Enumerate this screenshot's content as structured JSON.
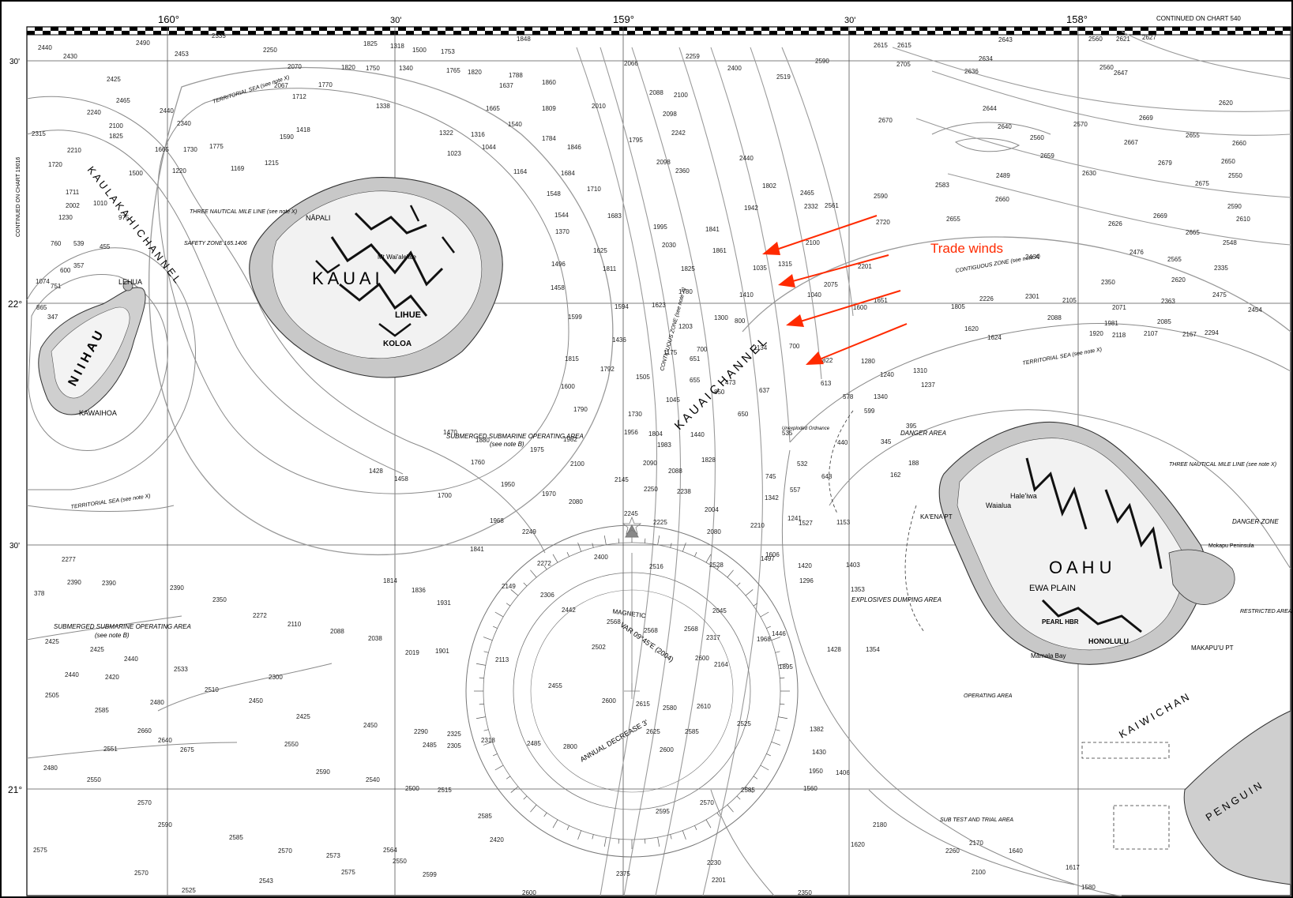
{
  "chart": {
    "top_longitude_labels": [
      "160°",
      "30'",
      "159°",
      "30'",
      "158°"
    ],
    "left_latitude_labels": [
      "30'",
      "22°",
      "30'",
      "21°"
    ],
    "continued_on_top": "CONTINUED ON CHART 540",
    "continued_on_left": "CONTINUED ON CHART 19016"
  },
  "islands": {
    "kauai": "K A U A I",
    "niihau": "N I I H A U",
    "oahu": "O A H U",
    "lehua": "LEHUA",
    "kawaihoa": "KAWAIHOA",
    "lihue": "LIHUE",
    "koloa": "KOLOA",
    "napali": "NĀPALI",
    "honolulu": "HONOLULU",
    "pearl_hbr": "PEARL HBR",
    "ewa_plain": "EWA PLAIN",
    "waialua": "Waialua",
    "haleiwa": "Hale'iwa",
    "kaena_pt": "KA'ENA PT",
    "makapuu_pt": "MAKAPU'U PT",
    "penguin_bank": "P E N G U I N",
    "mt_waialeale": "Mt Wai'ale'ale",
    "mamala_bay": "Māmala Bay",
    "mokapu_peninsula": "Mokapu Peninsula"
  },
  "channels": {
    "kaulakahi": "K A U L A K A H I   C H A N N E L",
    "kauai_channel": "K A U A I   C H A N N E L",
    "kaiwi": "K A I W I   C H A N"
  },
  "areas": {
    "submarine_area_1": "SUBMERGED SUBMARINE OPERATING AREA",
    "submarine_area_2": "SUBMERGED SUBMARINE OPERATING AREA",
    "see_note_b": "(see note B)",
    "territorial_sea": "TERRITORIAL SEA (see note X)",
    "three_mile": "THREE NAUTICAL MILE LINE (see note X)",
    "contiguous_zone": "CONTIGUOUS ZONE (see note X)",
    "safety_zone": "SAFETY ZONE 165.1406",
    "danger_area": "DANGER AREA",
    "danger_zone": "DANGER ZONE",
    "restricted_area": "RESTRICTED AREA",
    "explosives_dumping": "EXPLOSIVES DUMPING AREA",
    "operating_area": "OPERATING AREA",
    "unexploded_ordnance": "Unexploded Ordnance",
    "sub_test_trial": "SUB TEST AND TRIAL AREA"
  },
  "compass": {
    "magnetic": "MAGNETIC",
    "variation": "VAR 09°45'E (2004)",
    "annual_decrease": "ANNUAL DECREASE 3'"
  },
  "annotation": {
    "label": "Trade winds",
    "color": "#ff2a00"
  },
  "soundings": [
    [
      "2440",
      48,
      63
    ],
    [
      "2430",
      80,
      74
    ],
    [
      "2490",
      172,
      57
    ],
    [
      "2335",
      268,
      48
    ],
    [
      "2250",
      333,
      66
    ],
    [
      "1825",
      460,
      58
    ],
    [
      "1318",
      494,
      61
    ],
    [
      "1500",
      522,
      66
    ],
    [
      "1753",
      558,
      68
    ],
    [
      "1848",
      654,
      52
    ],
    [
      "2453",
      221,
      71
    ],
    [
      "2070",
      364,
      87
    ],
    [
      "1820",
      432,
      88
    ],
    [
      "1750",
      463,
      89
    ],
    [
      "1340",
      505,
      89
    ],
    [
      "1765",
      565,
      92
    ],
    [
      "1820",
      592,
      94
    ],
    [
      "1788",
      644,
      98
    ],
    [
      "2066",
      790,
      83
    ],
    [
      "2259",
      868,
      74
    ],
    [
      "2425",
      135,
      103
    ],
    [
      "2067",
      347,
      111
    ],
    [
      "1770",
      403,
      110
    ],
    [
      "1712",
      370,
      125
    ],
    [
      "1637",
      632,
      111
    ],
    [
      "1860",
      686,
      107
    ],
    [
      "2400",
      921,
      89
    ],
    [
      "2519",
      983,
      100
    ],
    [
      "2590",
      1032,
      80
    ],
    [
      "2615",
      1106,
      60
    ],
    [
      "2240",
      110,
      145
    ],
    [
      "2465",
      147,
      130
    ],
    [
      "2440",
      202,
      143
    ],
    [
      "1338",
      476,
      137
    ],
    [
      "1665",
      615,
      140
    ],
    [
      "1809",
      686,
      140
    ],
    [
      "2010",
      749,
      137
    ],
    [
      "2088",
      822,
      120
    ],
    [
      "2100",
      853,
      123
    ],
    [
      "2098",
      839,
      147
    ],
    [
      "2315",
      40,
      172
    ],
    [
      "1825",
      138,
      175
    ],
    [
      "2100",
      138,
      162
    ],
    [
      "2340",
      224,
      159
    ],
    [
      "1418",
      375,
      167
    ],
    [
      "1322",
      556,
      171
    ],
    [
      "1316",
      596,
      173
    ],
    [
      "1540",
      643,
      160
    ],
    [
      "2242",
      850,
      171
    ],
    [
      "2670",
      1112,
      155
    ],
    [
      "2210",
      85,
      193
    ],
    [
      "1665",
      196,
      192
    ],
    [
      "1730",
      232,
      192
    ],
    [
      "1775",
      265,
      188
    ],
    [
      "1590",
      354,
      176
    ],
    [
      "1023",
      566,
      197
    ],
    [
      "1044",
      610,
      189
    ],
    [
      "1784",
      686,
      178
    ],
    [
      "1846",
      718,
      189
    ],
    [
      "1795",
      796,
      180
    ],
    [
      "1720",
      61,
      211
    ],
    [
      "1500",
      163,
      222
    ],
    [
      "1220",
      218,
      219
    ],
    [
      "1169",
      292,
      216
    ],
    [
      "1215",
      335,
      209
    ],
    [
      "1164",
      650,
      220
    ],
    [
      "1684",
      710,
      222
    ],
    [
      "2098",
      831,
      208
    ],
    [
      "2360",
      855,
      219
    ],
    [
      "2440",
      936,
      203
    ],
    [
      "1711",
      83,
      246
    ],
    [
      "2002",
      83,
      263
    ],
    [
      "1010",
      118,
      260
    ],
    [
      "1548",
      692,
      248
    ],
    [
      "1710",
      743,
      242
    ],
    [
      "1802",
      965,
      238
    ],
    [
      "2465",
      1013,
      247
    ],
    [
      "2561",
      1044,
      263
    ],
    [
      "2583",
      1184,
      237
    ],
    [
      "2489",
      1261,
      225
    ],
    [
      "1230",
      74,
      278
    ],
    [
      "975",
      150,
      278
    ],
    [
      "1544",
      702,
      275
    ],
    [
      "1683",
      769,
      276
    ],
    [
      "1995",
      827,
      290
    ],
    [
      "1841",
      893,
      293
    ],
    [
      "1942",
      942,
      266
    ],
    [
      "2332",
      1018,
      264
    ],
    [
      "2590",
      1106,
      251
    ],
    [
      "2660",
      1260,
      255
    ],
    [
      "760",
      64,
      311
    ],
    [
      "539",
      93,
      311
    ],
    [
      "455",
      126,
      315
    ],
    [
      "1370",
      703,
      296
    ],
    [
      "1625",
      751,
      320
    ],
    [
      "2030",
      838,
      313
    ],
    [
      "1861",
      902,
      320
    ],
    [
      "2100",
      1020,
      310
    ],
    [
      "2720",
      1109,
      284
    ],
    [
      "2655",
      1198,
      280
    ],
    [
      "600",
      76,
      345
    ],
    [
      "357",
      93,
      339
    ],
    [
      "1074",
      45,
      359
    ],
    [
      "1496",
      698,
      337
    ],
    [
      "1811",
      763,
      343
    ],
    [
      "1825",
      862,
      343
    ],
    [
      "1035",
      953,
      342
    ],
    [
      "1315",
      985,
      337
    ],
    [
      "2201",
      1086,
      340
    ],
    [
      "2464",
      1298,
      328
    ],
    [
      "751",
      64,
      365
    ],
    [
      "865",
      46,
      392
    ],
    [
      "1458",
      697,
      367
    ],
    [
      "1780",
      859,
      372
    ],
    [
      "1410",
      936,
      376
    ],
    [
      "1040",
      1022,
      376
    ],
    [
      "2075",
      1043,
      363
    ],
    [
      "2301",
      1298,
      378
    ],
    [
      "2226",
      1240,
      381
    ],
    [
      "1805",
      1204,
      391
    ],
    [
      "347",
      60,
      404
    ],
    [
      "1594",
      778,
      391
    ],
    [
      "1623",
      825,
      389
    ],
    [
      "1300",
      904,
      405
    ],
    [
      "800",
      930,
      409
    ],
    [
      "1651",
      1106,
      383
    ],
    [
      "1600",
      1080,
      392
    ],
    [
      "1620",
      1221,
      419
    ],
    [
      "1624",
      1250,
      430
    ],
    [
      "2105",
      1345,
      383
    ],
    [
      "1599",
      719,
      404
    ],
    [
      "1203",
      859,
      416
    ],
    [
      "1175",
      840,
      449
    ],
    [
      "700",
      882,
      445
    ],
    [
      "651",
      873,
      457
    ],
    [
      "1134",
      954,
      443
    ],
    [
      "700",
      999,
      441
    ],
    [
      "822",
      1041,
      459
    ],
    [
      "1280",
      1090,
      460
    ],
    [
      "2088",
      1326,
      405
    ],
    [
      "1436",
      775,
      433
    ],
    [
      "1815",
      715,
      457
    ],
    [
      "1792",
      760,
      470
    ],
    [
      "1505",
      805,
      480
    ],
    [
      "655",
      873,
      484
    ],
    [
      "473",
      918,
      487
    ],
    [
      "637",
      961,
      497
    ],
    [
      "613",
      1039,
      488
    ],
    [
      "1240",
      1114,
      477
    ],
    [
      "1310",
      1156,
      472
    ],
    [
      "1600",
      710,
      492
    ],
    [
      "1790",
      726,
      521
    ],
    [
      "1045",
      843,
      509
    ],
    [
      "850",
      904,
      499
    ],
    [
      "578",
      1067,
      505
    ],
    [
      "1340",
      1106,
      505
    ],
    [
      "1237",
      1166,
      490
    ],
    [
      "1920",
      1379,
      425
    ],
    [
      "1981",
      1398,
      412
    ],
    [
      "2085",
      1465,
      410
    ],
    [
      "1730",
      795,
      527
    ],
    [
      "1956",
      790,
      550
    ],
    [
      "1804",
      821,
      552
    ],
    [
      "1440",
      874,
      553
    ],
    [
      "650",
      934,
      527
    ],
    [
      "599",
      1094,
      523
    ],
    [
      "2118",
      1408,
      427
    ],
    [
      "2107",
      1448,
      425
    ],
    [
      "2167",
      1497,
      426
    ],
    [
      "2294",
      1525,
      424
    ],
    [
      "1982",
      713,
      559
    ],
    [
      "1975",
      671,
      572
    ],
    [
      "1880",
      602,
      560
    ],
    [
      "1470",
      561,
      550
    ],
    [
      "1983",
      832,
      566
    ],
    [
      "1828",
      888,
      585
    ],
    [
      "535",
      990,
      551
    ],
    [
      "440",
      1060,
      563
    ],
    [
      "345",
      1115,
      562
    ],
    [
      "395",
      1147,
      542
    ],
    [
      "2100",
      722,
      590
    ],
    [
      "2145",
      778,
      610
    ],
    [
      "2090",
      814,
      589
    ],
    [
      "2088",
      846,
      599
    ],
    [
      "2250",
      815,
      622
    ],
    [
      "745",
      969,
      606
    ],
    [
      "532",
      1009,
      590
    ],
    [
      "648",
      1040,
      606
    ],
    [
      "188",
      1150,
      589
    ],
    [
      "162",
      1127,
      604
    ],
    [
      "2080",
      720,
      638
    ],
    [
      "1970",
      686,
      628
    ],
    [
      "1950",
      634,
      616
    ],
    [
      "1760",
      596,
      588
    ],
    [
      "1700",
      554,
      630
    ],
    [
      "1458",
      499,
      609
    ],
    [
      "1428",
      467,
      599
    ],
    [
      "2238",
      857,
      625
    ],
    [
      "557",
      1000,
      623
    ],
    [
      "1342",
      968,
      633
    ],
    [
      "1968",
      620,
      662
    ],
    [
      "2249",
      661,
      676
    ],
    [
      "2245",
      790,
      653
    ],
    [
      "2225",
      827,
      664
    ],
    [
      "2004",
      892,
      648
    ],
    [
      "2080",
      895,
      676
    ],
    [
      "2210",
      950,
      668
    ],
    [
      "1241",
      997,
      659
    ],
    [
      "1527",
      1011,
      665
    ],
    [
      "1153",
      1059,
      664
    ],
    [
      "2272",
      680,
      716
    ],
    [
      "2400",
      752,
      708
    ],
    [
      "2516",
      822,
      720
    ],
    [
      "2528",
      898,
      718
    ],
    [
      "1606",
      969,
      705
    ],
    [
      "1497",
      963,
      710
    ],
    [
      "1420",
      1010,
      719
    ],
    [
      "1403",
      1071,
      718
    ],
    [
      "1296",
      1012,
      738
    ],
    [
      "1353",
      1077,
      749
    ],
    [
      "2277",
      78,
      711
    ],
    [
      "2390",
      85,
      740
    ],
    [
      "2390",
      129,
      741
    ],
    [
      "2390",
      215,
      747
    ],
    [
      "2350",
      269,
      762
    ],
    [
      "1814",
      485,
      738
    ],
    [
      "1836",
      521,
      750
    ],
    [
      "1841",
      595,
      698
    ],
    [
      "2149",
      635,
      745
    ],
    [
      "2306",
      684,
      756
    ],
    [
      "378",
      43,
      754
    ],
    [
      "2272",
      320,
      782
    ],
    [
      "2110",
      364,
      793
    ],
    [
      "2088",
      418,
      802
    ],
    [
      "1931",
      553,
      766
    ],
    [
      "2442",
      711,
      775
    ],
    [
      "2568",
      768,
      790
    ],
    [
      "2568",
      815,
      801
    ],
    [
      "2568",
      866,
      799
    ],
    [
      "2045",
      902,
      776
    ],
    [
      "2425",
      57,
      815
    ],
    [
      "2425",
      114,
      825
    ],
    [
      "2440",
      157,
      837
    ],
    [
      "2038",
      466,
      811
    ],
    [
      "2019",
      513,
      829
    ],
    [
      "1901",
      551,
      827
    ],
    [
      "2502",
      749,
      822
    ],
    [
      "2317",
      894,
      810
    ],
    [
      "1968",
      958,
      812
    ],
    [
      "1446",
      977,
      805
    ],
    [
      "2440",
      82,
      857
    ],
    [
      "2420",
      133,
      860
    ],
    [
      "2533",
      220,
      850
    ],
    [
      "2300",
      340,
      860
    ],
    [
      "2113",
      627,
      838
    ],
    [
      "2600",
      880,
      836
    ],
    [
      "2164",
      904,
      844
    ],
    [
      "1895",
      986,
      847
    ],
    [
      "1428",
      1047,
      825
    ],
    [
      "1354",
      1096,
      825
    ],
    [
      "2505",
      57,
      883
    ],
    [
      "2585",
      120,
      902
    ],
    [
      "2480",
      190,
      892
    ],
    [
      "2510",
      259,
      876
    ],
    [
      "2450",
      315,
      890
    ],
    [
      "2455",
      694,
      871
    ],
    [
      "2600",
      762,
      890
    ],
    [
      "2615",
      805,
      894
    ],
    [
      "2580",
      839,
      899
    ],
    [
      "2610",
      882,
      897
    ],
    [
      "2660",
      174,
      928
    ],
    [
      "2640",
      200,
      940
    ],
    [
      "2425",
      375,
      910
    ],
    [
      "2450",
      460,
      921
    ],
    [
      "2290",
      524,
      929
    ],
    [
      "2325",
      566,
      932
    ],
    [
      "2318",
      609,
      940
    ],
    [
      "2485",
      667,
      944
    ],
    [
      "2625",
      818,
      929
    ],
    [
      "2585",
      867,
      929
    ],
    [
      "2551",
      131,
      951
    ],
    [
      "2675",
      228,
      952
    ],
    [
      "2550",
      360,
      945
    ],
    [
      "2590",
      400,
      980
    ],
    [
      "2540",
      463,
      990
    ],
    [
      "2485",
      535,
      946
    ],
    [
      "2305",
      566,
      947
    ],
    [
      "2600",
      835,
      952
    ],
    [
      "2800",
      713,
      948
    ],
    [
      "2525",
      933,
      919
    ],
    [
      "2480",
      55,
      975
    ],
    [
      "2550",
      110,
      990
    ],
    [
      "2500",
      513,
      1001
    ],
    [
      "2515",
      554,
      1003
    ],
    [
      "2585",
      938,
      1003
    ],
    [
      "1382",
      1025,
      926
    ],
    [
      "1430",
      1028,
      955
    ],
    [
      "1950",
      1024,
      979
    ],
    [
      "1406",
      1058,
      981
    ],
    [
      "1560",
      1017,
      1001
    ],
    [
      "2570",
      174,
      1019
    ],
    [
      "2590",
      200,
      1047
    ],
    [
      "2585",
      290,
      1063
    ],
    [
      "2570",
      352,
      1080
    ],
    [
      "2573",
      413,
      1086
    ],
    [
      "2575",
      432,
      1107
    ],
    [
      "2564",
      485,
      1079
    ],
    [
      "2585",
      605,
      1036
    ],
    [
      "2570",
      886,
      1019
    ],
    [
      "2595",
      830,
      1030
    ],
    [
      "2575",
      42,
      1079
    ],
    [
      "2570",
      170,
      1108
    ],
    [
      "2543",
      328,
      1118
    ],
    [
      "2525",
      230,
      1130
    ],
    [
      "2550",
      497,
      1093
    ],
    [
      "2599",
      535,
      1110
    ],
    [
      "2420",
      620,
      1066
    ],
    [
      "2375",
      780,
      1109
    ],
    [
      "2230",
      895,
      1095
    ],
    [
      "2201",
      901,
      1117
    ],
    [
      "2600",
      661,
      1133
    ],
    [
      "2350",
      1010,
      1133
    ],
    [
      "1620",
      1077,
      1072
    ],
    [
      "2180",
      1105,
      1047
    ],
    [
      "2260",
      1197,
      1080
    ],
    [
      "2170",
      1227,
      1070
    ],
    [
      "2100",
      1230,
      1107
    ],
    [
      "1640",
      1277,
      1080
    ],
    [
      "1617",
      1349,
      1101
    ],
    [
      "1580",
      1369,
      1126
    ],
    [
      "2643",
      1264,
      53
    ],
    [
      "2560",
      1378,
      52
    ],
    [
      "2621",
      1413,
      52
    ],
    [
      "2627",
      1446,
      50
    ],
    [
      "2615",
      1136,
      60
    ],
    [
      "2705",
      1135,
      84
    ],
    [
      "2560",
      1392,
      88
    ],
    [
      "2647",
      1410,
      95
    ],
    [
      "2634",
      1239,
      77
    ],
    [
      "2636",
      1221,
      93
    ],
    [
      "2620",
      1543,
      133
    ],
    [
      "2669",
      1442,
      152
    ],
    [
      "2655",
      1501,
      174
    ],
    [
      "2570",
      1359,
      160
    ],
    [
      "2644",
      1244,
      140
    ],
    [
      "2560",
      1304,
      177
    ],
    [
      "2640",
      1263,
      163
    ],
    [
      "2667",
      1423,
      183
    ],
    [
      "2659",
      1317,
      200
    ],
    [
      "2660",
      1560,
      184
    ],
    [
      "2679",
      1466,
      209
    ],
    [
      "2650",
      1546,
      207
    ],
    [
      "2630",
      1370,
      222
    ],
    [
      "2675",
      1513,
      235
    ],
    [
      "2550",
      1555,
      225
    ],
    [
      "2590",
      1554,
      264
    ],
    [
      "2626",
      1403,
      286
    ],
    [
      "2669",
      1460,
      276
    ],
    [
      "2610",
      1565,
      280
    ],
    [
      "2665",
      1501,
      297
    ],
    [
      "2548",
      1548,
      310
    ],
    [
      "2476",
      1430,
      322
    ],
    [
      "2565",
      1478,
      331
    ],
    [
      "2335",
      1537,
      342
    ],
    [
      "2350",
      1394,
      360
    ],
    [
      "2620",
      1483,
      357
    ],
    [
      "2475",
      1535,
      376
    ],
    [
      "2363",
      1470,
      384
    ],
    [
      "2071",
      1408,
      392
    ],
    [
      "2454",
      1580,
      395
    ]
  ]
}
